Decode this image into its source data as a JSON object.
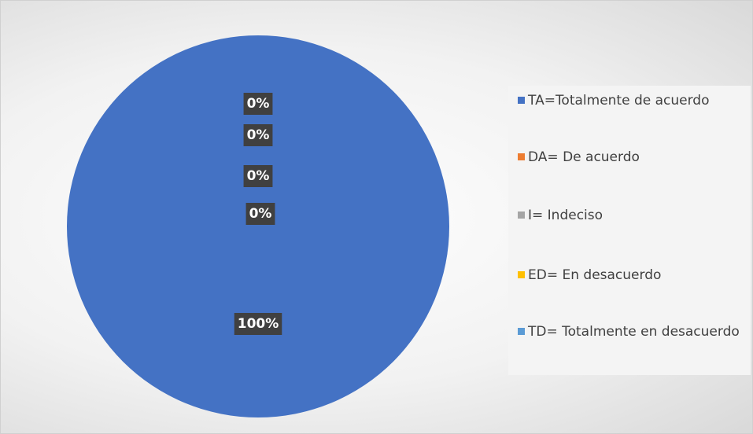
{
  "chart_data": {
    "type": "pie",
    "categories": [
      "TA=Totalmente de acuerdo",
      "DA= De acuerdo",
      "I= Indeciso",
      "ED= En desacuerdo",
      "TD= Totalmente en desacuerdo"
    ],
    "values": [
      100,
      0,
      0,
      0,
      0
    ],
    "value_labels": [
      "100%",
      "0%",
      "0%",
      "0%",
      "0%"
    ],
    "colors": [
      "#4472c4",
      "#ed7d31",
      "#a5a5a5",
      "#ffc000",
      "#5b9bd5"
    ],
    "legend": "right"
  }
}
